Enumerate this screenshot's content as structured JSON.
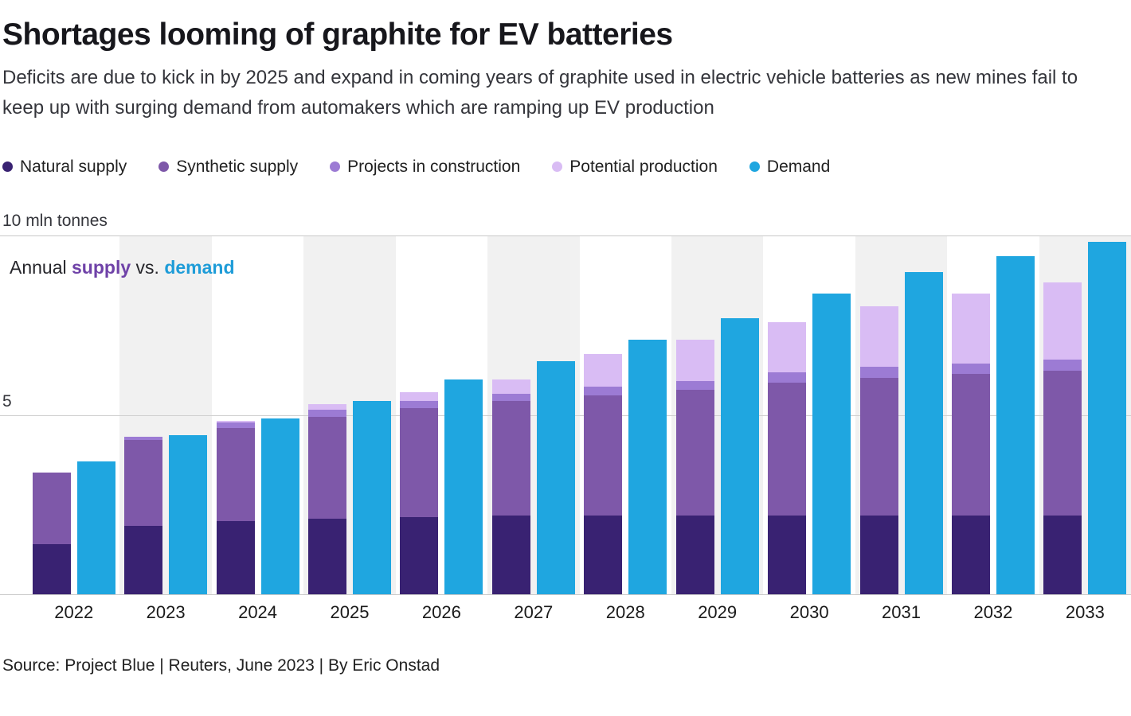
{
  "header": {
    "title": "Shortages looming of graphite for EV batteries",
    "subtitle": "Deficits are due to kick in by 2025 and expand in coming years of graphite used in electric vehicle batteries as new mines fail to keep up with surging demand from automakers which are ramping up EV production"
  },
  "legend": [
    {
      "label": "Natural supply",
      "color": "#392272"
    },
    {
      "label": "Synthetic supply",
      "color": "#7e58a9"
    },
    {
      "label": "Projects in construction",
      "color": "#9c7bd4"
    },
    {
      "label": "Potential production",
      "color": "#d9bcf4"
    },
    {
      "label": "Demand",
      "color": "#1fa6e0"
    }
  ],
  "axis": {
    "top_label": "10 mln tonnes",
    "mid_label": "5"
  },
  "annotation": {
    "prefix": "Annual ",
    "supply_word": "supply",
    "middle": " vs. ",
    "demand_word": "demand"
  },
  "chart_data": {
    "type": "bar",
    "title": "Annual supply vs. demand",
    "unit": "mln tonnes",
    "ylim": [
      0,
      10
    ],
    "gridlines": [
      5,
      10
    ],
    "legend_position": "top",
    "categories": [
      "2022",
      "2023",
      "2024",
      "2025",
      "2026",
      "2027",
      "2028",
      "2029",
      "2030",
      "2031",
      "2032",
      "2033"
    ],
    "stack_order": [
      "Natural supply",
      "Synthetic supply",
      "Projects in construction",
      "Potential production"
    ],
    "series": [
      {
        "name": "Natural supply",
        "values": [
          1.4,
          1.9,
          2.05,
          2.1,
          2.15,
          2.2,
          2.2,
          2.2,
          2.2,
          2.2,
          2.2,
          2.2
        ]
      },
      {
        "name": "Synthetic supply",
        "values": [
          2.0,
          2.4,
          2.6,
          2.85,
          3.05,
          3.2,
          3.35,
          3.5,
          3.7,
          3.85,
          3.95,
          4.05
        ]
      },
      {
        "name": "Projects in construction",
        "values": [
          0,
          0.1,
          0.15,
          0.2,
          0.2,
          0.2,
          0.25,
          0.25,
          0.3,
          0.3,
          0.3,
          0.3
        ]
      },
      {
        "name": "Potential production",
        "values": [
          0,
          0,
          0.05,
          0.15,
          0.25,
          0.4,
          0.9,
          1.15,
          1.4,
          1.7,
          1.95,
          2.15
        ]
      },
      {
        "name": "Demand",
        "values": [
          3.7,
          4.45,
          4.9,
          5.4,
          6.0,
          6.5,
          7.1,
          7.7,
          8.4,
          9.0,
          9.45,
          9.85
        ]
      }
    ]
  },
  "source": "Source: Project Blue | Reuters, June 2023 | By Eric Onstad"
}
